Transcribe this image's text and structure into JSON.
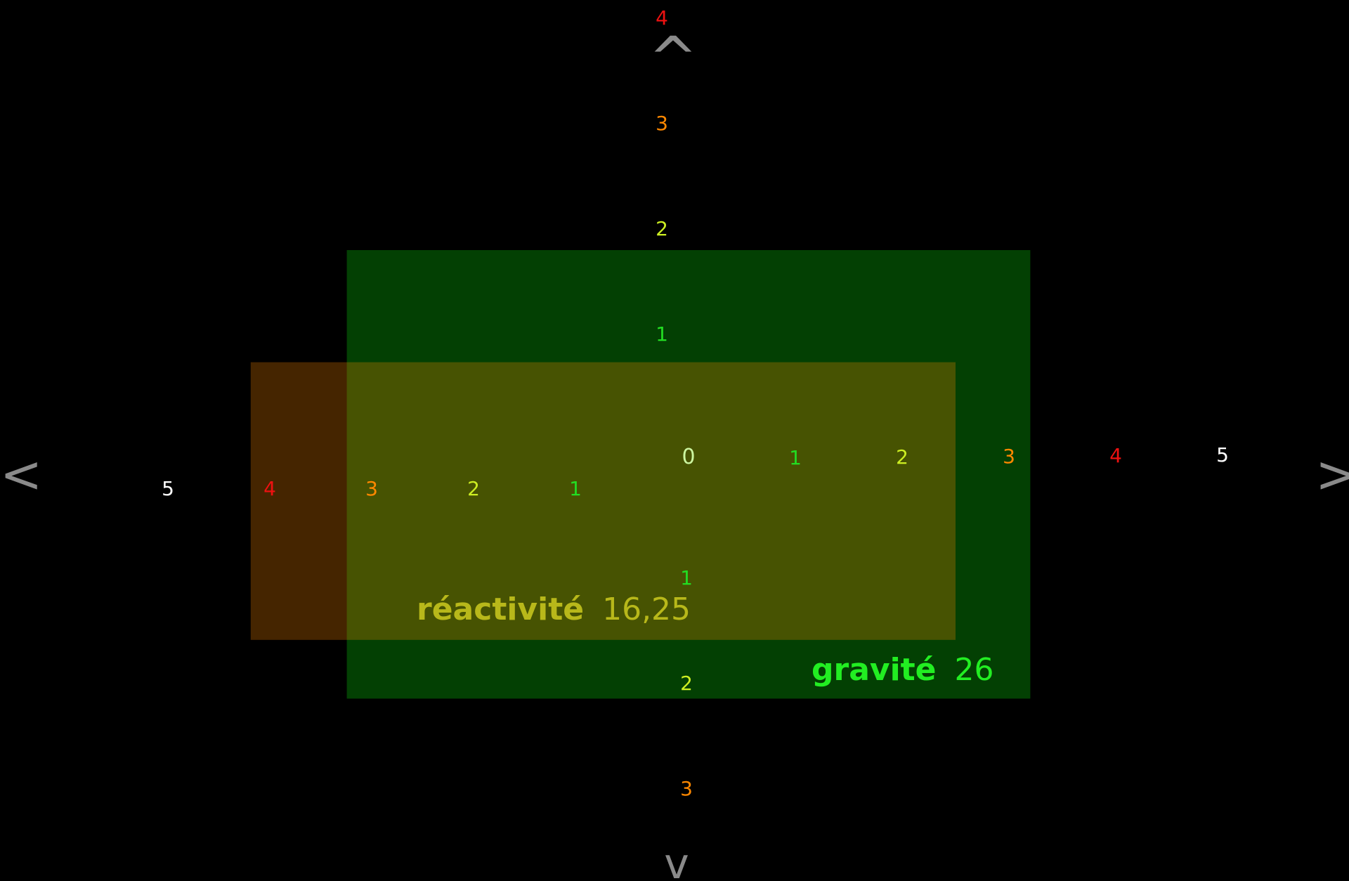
{
  "chart_data": {
    "type": "area",
    "colors": {
      "background": "#000000",
      "arrow": "#8a8a8a",
      "level_0": "#ccf5a0",
      "level_1": "#22dd22",
      "level_2": "#ccee22",
      "level_3": "#ff8800",
      "level_4": "#ee1111",
      "level_5": "#ffffff"
    },
    "nav_arrows": {
      "left": {
        "glyph": "<",
        "icon": "chevron-left-icon"
      },
      "right": {
        "glyph": ">",
        "icon": "chevron-right-icon"
      },
      "up": {
        "glyph": "^",
        "icon": "chevron-up-icon"
      },
      "down": {
        "glyph": "v",
        "icon": "chevron-down-icon"
      }
    },
    "axes": {
      "origin_label": "0",
      "x_negative_ticks": [
        {
          "value": 1,
          "label": "1",
          "level": 1
        },
        {
          "value": 2,
          "label": "2",
          "level": 2
        },
        {
          "value": 3,
          "label": "3",
          "level": 3
        },
        {
          "value": 4,
          "label": "4",
          "level": 4
        },
        {
          "value": 5,
          "label": "5",
          "level": 5
        }
      ],
      "x_positive_ticks": [
        {
          "value": 1,
          "label": "1",
          "level": 1
        },
        {
          "value": 2,
          "label": "2",
          "level": 2
        },
        {
          "value": 3,
          "label": "3",
          "level": 3
        },
        {
          "value": 4,
          "label": "4",
          "level": 4
        },
        {
          "value": 5,
          "label": "5",
          "level": 5
        }
      ],
      "y_positive_ticks": [
        {
          "value": 1,
          "label": "1",
          "level": 1
        },
        {
          "value": 2,
          "label": "2",
          "level": 2
        },
        {
          "value": 3,
          "label": "3",
          "level": 3
        },
        {
          "value": 4,
          "label": "4",
          "level": 4
        }
      ],
      "y_negative_ticks": [
        {
          "value": 1,
          "label": "1",
          "level": 1
        },
        {
          "value": 2,
          "label": "2",
          "level": 2
        },
        {
          "value": 3,
          "label": "3",
          "level": 3
        }
      ]
    },
    "series": [
      {
        "name": "gravité",
        "value_label": "26",
        "value": 26,
        "x_range": [
          -3.2,
          3.2
        ],
        "y_range": [
          -2.2,
          2.0
        ],
        "fill": "#034003",
        "label_color": "#22ee22"
      },
      {
        "name": "réactivité",
        "value_label": "16,25",
        "value": 16.25,
        "x_range": [
          -4.1,
          2.5
        ],
        "y_range": [
          -1.65,
          0.95
        ],
        "fill": "#ff8800",
        "fill_opacity": 0.27,
        "label_color": "#b8b81a"
      }
    ]
  }
}
